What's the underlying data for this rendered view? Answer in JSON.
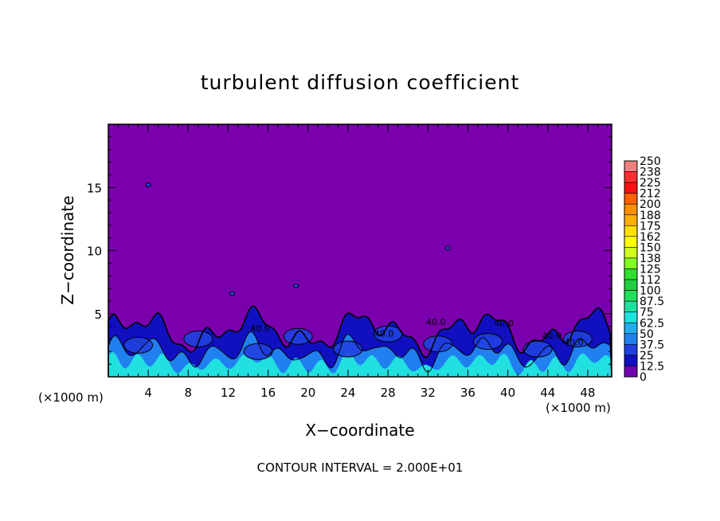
{
  "chart_data": {
    "type": "heatmap",
    "title": "turbulent diffusion coefficient",
    "xlabel": "X−coordinate",
    "ylabel": "Z−coordinate",
    "x_unit_left": "(×1000 m)",
    "x_unit_right": "(×1000 m)",
    "xlim": [
      0,
      50.4
    ],
    "ylim": [
      0,
      20
    ],
    "x_ticks": [
      4,
      8,
      12,
      16,
      20,
      24,
      28,
      32,
      36,
      40,
      44,
      48
    ],
    "y_ticks": [
      5,
      10,
      15
    ],
    "footer": "CONTOUR INTERVAL = 2.000E+01",
    "grid": false,
    "legend_position": "right",
    "colorbar": {
      "levels": [
        "250",
        "238",
        "225",
        "212",
        "200",
        "188",
        "175",
        "162",
        "150",
        "138",
        "125",
        "112",
        "100",
        "87.5",
        "75",
        "62.5",
        "50",
        "37.5",
        "25",
        "12.5",
        "0"
      ],
      "colors": [
        "#f08080",
        "#ff3030",
        "#ff1010",
        "#ff6000",
        "#ff9000",
        "#ffb000",
        "#ffe000",
        "#ffff00",
        "#d0ff20",
        "#80ff20",
        "#30e030",
        "#20d040",
        "#20e060",
        "#20e0a0",
        "#20e0e0",
        "#20b0f0",
        "#2080f0",
        "#2040e0",
        "#1010c0",
        "#7000b0"
      ]
    },
    "background_color": "#7b00ad",
    "labeled_contours": [
      "40.0",
      "40.0",
      "40.0",
      "40.0",
      "40.0",
      "40.0"
    ]
  }
}
